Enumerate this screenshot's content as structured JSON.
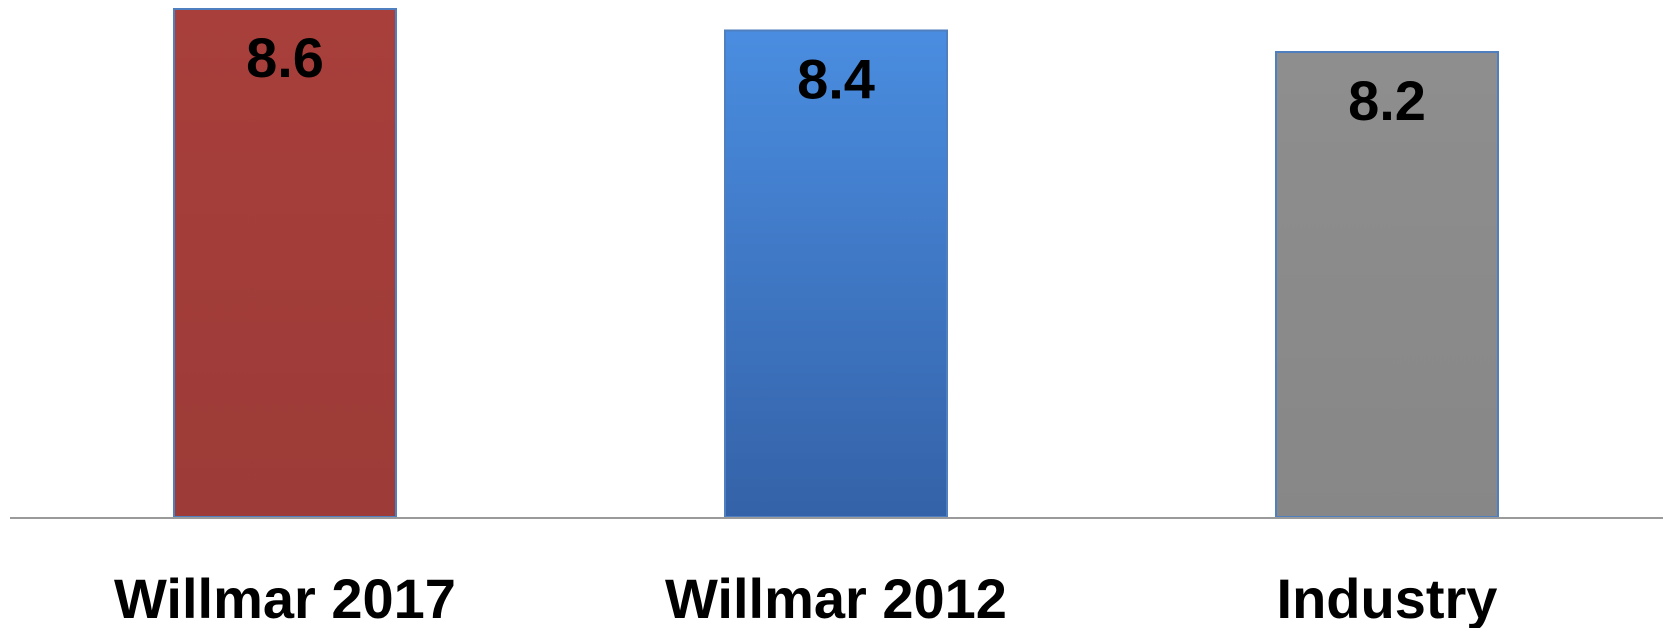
{
  "chart_data": {
    "type": "bar",
    "title": "",
    "xlabel": "",
    "ylabel": "",
    "categories": [
      "Willmar 2017",
      "Willmar 2012",
      "Industry"
    ],
    "values": [
      8.6,
      8.4,
      8.2
    ],
    "data_labels": [
      "8.6",
      "8.4",
      "8.2"
    ],
    "bar_colors": [
      "#a33d3a",
      "#3f7ccc",
      "#8c8c8c"
    ],
    "grid": false,
    "legend": "none"
  }
}
